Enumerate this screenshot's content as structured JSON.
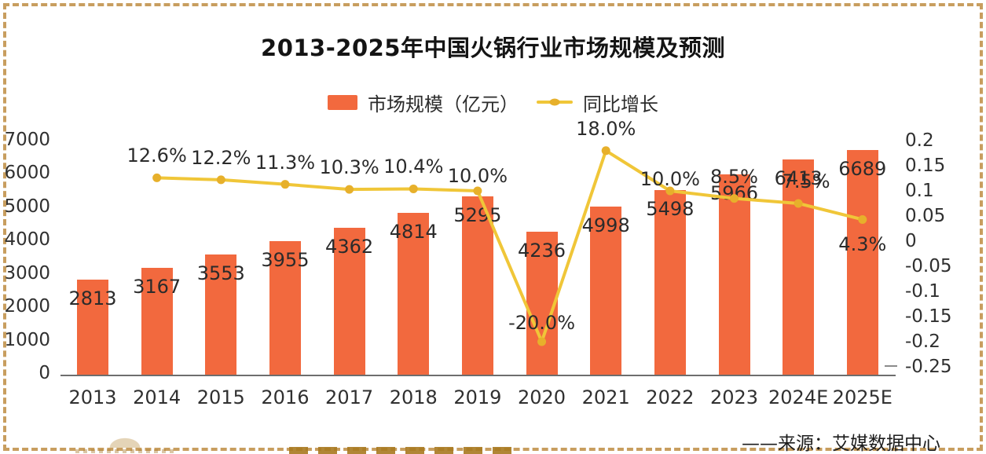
{
  "title": "2013-2025年中国火锅行业市场规模及预测",
  "legend": {
    "bar_label": "市场规模（亿元）",
    "line_label": "同比增长"
  },
  "source_note": "——来源：艾媒数据中心",
  "colors": {
    "bar": "#F2693E",
    "line": "#F0C638",
    "line_marker": "#E7B02B",
    "border_dash": "#C89E5F",
    "axis_text": "#303030",
    "label_text": "#2B2B2B"
  },
  "chart_data": {
    "type": "bar",
    "combo": [
      "bar",
      "line"
    ],
    "title": "2013-2025年中国火锅行业市场规模及预测",
    "categories": [
      "2013",
      "2014",
      "2015",
      "2016",
      "2017",
      "2018",
      "2019",
      "2020",
      "2021",
      "2022",
      "2023",
      "2024E",
      "2025E"
    ],
    "series": [
      {
        "name": "市场规模（亿元）",
        "type": "bar",
        "axis": "left",
        "values": [
          2813,
          3167,
          3553,
          3955,
          4362,
          4814,
          5295,
          4236,
          4998,
          5498,
          5966,
          6413,
          6689
        ],
        "data_labels": [
          "2813",
          "3167",
          "3553",
          "3955",
          "4362",
          "4814",
          "5295",
          "4236",
          "4998",
          "5498",
          "5966",
          "6413",
          "6689"
        ]
      },
      {
        "name": "同比增长",
        "type": "line",
        "axis": "right",
        "values": [
          null,
          0.126,
          0.122,
          0.113,
          0.103,
          0.104,
          0.1,
          -0.2,
          0.18,
          0.1,
          0.085,
          0.075,
          0.043
        ],
        "data_labels": [
          null,
          "12.6%",
          "12.2%",
          "11.3%",
          "10.3%",
          "10.4%",
          "10.0%",
          "-20.0%",
          "18.0%",
          "10.0%",
          "8.5%",
          "7.5%",
          "4.3%"
        ]
      }
    ],
    "left_axis": {
      "ticks": [
        "7000",
        "6000",
        "5000",
        "4000",
        "3000",
        "2000",
        "1000",
        "0"
      ],
      "range": [
        0,
        7000
      ],
      "label": "市场规模（亿元）"
    },
    "right_axis": {
      "ticks": [
        "0.2",
        "0.15",
        "0.1",
        "0.05",
        "0",
        "-0.05",
        "-0.1",
        "-0.15",
        "-0.2",
        "-0.25"
      ],
      "range": [
        -0.25,
        0.2
      ],
      "label": "同比增长"
    },
    "grid": false,
    "legend_position": "top",
    "source": "——来源：艾媒数据中心"
  }
}
